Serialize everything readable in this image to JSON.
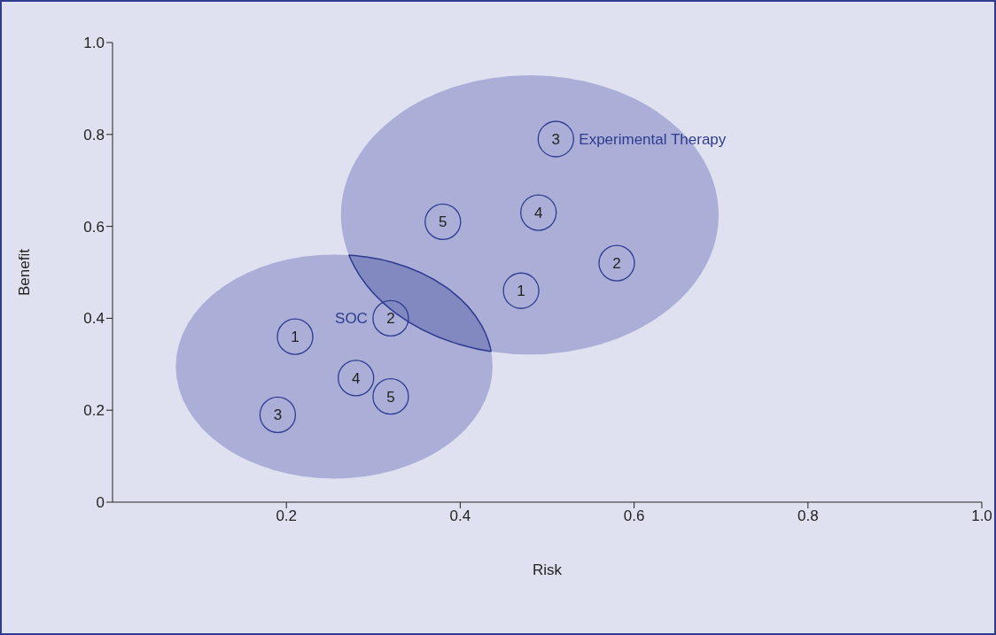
{
  "chart_data": {
    "type": "scatter",
    "xlabel": "Risk",
    "ylabel": "Benefit",
    "xlim": [
      0,
      1
    ],
    "ylim": [
      0,
      1
    ],
    "xticks": [
      0.2,
      0.4,
      0.6,
      0.8,
      {
        "value": 1,
        "label": "1.0"
      }
    ],
    "yticks": [
      0,
      0.2,
      0.4,
      0.6,
      0.8,
      {
        "value": 1,
        "label": "1.0"
      }
    ],
    "grid": false,
    "legend": false,
    "marker": "circle",
    "series": [
      {
        "name": "SOC",
        "color": "#2e3b8f",
        "x": [
          0.21,
          0.32,
          0.19,
          0.28,
          0.32
        ],
        "values": [
          0.36,
          0.4,
          0.19,
          0.27,
          0.23
        ]
      },
      {
        "name": "Experimental Therapy",
        "color": "#2e3b8f",
        "x": [
          0.47,
          0.58,
          0.51,
          0.49,
          0.38
        ],
        "values": [
          0.46,
          0.52,
          0.79,
          0.63,
          0.61
        ]
      }
    ],
    "annotations": [
      {
        "text": "1",
        "x": 0.21,
        "y": 0.36
      },
      {
        "text": "2",
        "x": 0.32,
        "y": 0.4
      },
      {
        "text": "3",
        "x": 0.19,
        "y": 0.19
      },
      {
        "text": "4",
        "x": 0.28,
        "y": 0.27
      },
      {
        "text": "5",
        "x": 0.32,
        "y": 0.23
      },
      {
        "text": "1",
        "x": 0.47,
        "y": 0.46
      },
      {
        "text": "2",
        "x": 0.58,
        "y": 0.52
      },
      {
        "text": "3",
        "x": 0.51,
        "y": 0.79
      },
      {
        "text": "4",
        "x": 0.49,
        "y": 0.63
      },
      {
        "text": "5",
        "x": 0.38,
        "y": 0.61
      }
    ]
  }
}
